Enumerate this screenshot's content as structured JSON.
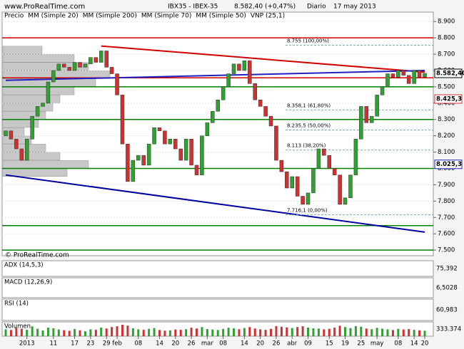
{
  "chart_data": {
    "type": "candlestick",
    "title": "IBX35 - IBEX-35",
    "last_price": "8.582,40 (+0,47%)",
    "period": "Diario",
    "date": "17 may 2013",
    "watermark": "www.ProRealTime.com",
    "footer_logo": "© ProRealTime.com",
    "legend": [
      {
        "name": "Precio",
        "color": "#555555"
      },
      {
        "name": "MM (Simple 20)",
        "color": "#c04040"
      },
      {
        "name": "MM (Simple 200)",
        "color": "#205020"
      },
      {
        "name": "MM (Simple 70)",
        "color": "#202090"
      },
      {
        "name": "MM (Simple 50)",
        "color": "#9090c0"
      },
      {
        "name": "VNP (25,1)",
        "color": "#a0a0a0"
      }
    ],
    "ylim": [
      7470,
      9010
    ],
    "yticks": [
      {
        "value": 8900,
        "label": "8.900"
      },
      {
        "value": 8800,
        "label": "8.800"
      },
      {
        "value": 8700,
        "label": "8.700"
      },
      {
        "value": 8600,
        "label": "8.600"
      },
      {
        "value": 8500,
        "label": "8.500"
      },
      {
        "value": 8400,
        "label": "8.400"
      },
      {
        "value": 8300,
        "label": "8.300"
      },
      {
        "value": 8200,
        "label": "8.200"
      },
      {
        "value": 8100,
        "label": "8.100"
      },
      {
        "value": 8000,
        "label": "8.000"
      },
      {
        "value": 7900,
        "label": "7.900"
      },
      {
        "value": 7800,
        "label": "7.800"
      },
      {
        "value": 7700,
        "label": "7.700"
      },
      {
        "value": 7600,
        "label": "7.600"
      },
      {
        "value": 7500,
        "label": "7.500"
      }
    ],
    "categories": [
      null,
      null,
      null,
      null,
      "2013",
      null,
      null,
      null,
      null,
      "11",
      null,
      null,
      null,
      "17",
      null,
      null,
      "23",
      null,
      null,
      "29",
      null,
      "feb",
      null,
      null,
      null,
      "08",
      null,
      null,
      null,
      "14",
      null,
      null,
      "20",
      null,
      null,
      "26",
      null,
      null,
      "mar",
      null,
      null,
      "08",
      null,
      null,
      null,
      "14",
      null,
      null,
      "20",
      null,
      null,
      "26",
      null,
      null,
      "abr",
      null,
      null,
      "09",
      null,
      null,
      null,
      "15",
      null,
      null,
      "19",
      null,
      null,
      "25",
      null,
      null,
      "may",
      null,
      null,
      null,
      "08",
      null,
      null,
      "14",
      null,
      "20"
    ],
    "open": [
      8200,
      8230,
      8180,
      8120,
      8050,
      8180,
      8320,
      8380,
      8400,
      8530,
      8600,
      8640,
      8620,
      8600,
      8650,
      8620,
      8640,
      8680,
      8650,
      8720,
      8620,
      8580,
      8450,
      8150,
      7920,
      8050,
      8080,
      8020,
      8150,
      8250,
      8230,
      8150,
      8180,
      8120,
      8050,
      8180,
      8020,
      7960,
      8200,
      8280,
      8350,
      8420,
      8500,
      8580,
      8640,
      8600,
      8660,
      8520,
      8420,
      8380,
      8320,
      8260,
      8050,
      7980,
      7880,
      7950,
      7830,
      7780,
      7850,
      8000,
      8120,
      8080,
      8000,
      7960,
      7780,
      7820,
      7960,
      8180,
      8380,
      8280,
      8320,
      8450,
      8500,
      8580,
      8560,
      8600,
      8570,
      8520,
      8600,
      8560
    ],
    "close": [
      8230,
      8180,
      8120,
      8050,
      8180,
      8320,
      8380,
      8400,
      8530,
      8600,
      8640,
      8620,
      8600,
      8650,
      8620,
      8640,
      8680,
      8650,
      8720,
      8620,
      8580,
      8450,
      8150,
      7920,
      8050,
      8080,
      8020,
      8150,
      8250,
      8230,
      8150,
      8180,
      8120,
      8050,
      8180,
      8020,
      7960,
      8200,
      8280,
      8350,
      8420,
      8500,
      8580,
      8640,
      8600,
      8660,
      8520,
      8420,
      8380,
      8320,
      8260,
      8050,
      7980,
      7880,
      7950,
      7830,
      7780,
      7850,
      8000,
      8120,
      8080,
      8000,
      7960,
      7780,
      7820,
      7960,
      8180,
      8380,
      8280,
      8320,
      8450,
      8500,
      8580,
      8560,
      8600,
      8570,
      8520,
      8600,
      8560,
      8582.4
    ],
    "up_color": "#30a030",
    "down_color": "#d03030",
    "levels": [
      {
        "value": 8800,
        "color": "#d00000"
      },
      {
        "value": 8555,
        "color": "#d00000"
      },
      {
        "value": 8500,
        "color": "#008000"
      },
      {
        "value": 8300,
        "color": "#008000"
      },
      {
        "value": 8000,
        "color": "#008000"
      },
      {
        "value": 7650,
        "color": "#008000"
      },
      {
        "value": 7500,
        "color": "#008000"
      }
    ],
    "trendlines": [
      {
        "from": [
          18,
          8750
        ],
        "to": [
          79,
          8590
        ],
        "color": "#d00000"
      },
      {
        "from": [
          0,
          7960
        ],
        "to": [
          79,
          7610
        ],
        "color": "#0000a0"
      },
      {
        "from": [
          0,
          8540
        ],
        "to": [
          79,
          8600
        ],
        "color": "#2020c0"
      }
    ],
    "fib_labels": [
      {
        "value": 8755,
        "label": "8.755 (100,00%)"
      },
      {
        "value": 8358.1,
        "label": "8.358,1 (61,80%)"
      },
      {
        "value": 8235.5,
        "label": "8.235,5 (50,00%)"
      },
      {
        "value": 8113,
        "label": "8.113 (38,20%)"
      },
      {
        "value": 7716.1,
        "label": "7.716,1 (0,00%)"
      }
    ],
    "price_labels": [
      {
        "value": 8582.4,
        "label": "8.582,40",
        "color": "#000000"
      },
      {
        "value": 8425.3,
        "label": "8.425,3",
        "color": "#d03030"
      },
      {
        "value": 8025.3,
        "label": "8.025,3",
        "color": "#2020c0"
      }
    ],
    "vnp_prices": [
      8725,
      8675,
      8625,
      8575,
      8525,
      8475,
      8425,
      8375,
      8325,
      8275,
      8225,
      8175,
      8125,
      8075,
      8025,
      7975
    ],
    "vnp_values": [
      55,
      100,
      120,
      150,
      130,
      100,
      80,
      70,
      60,
      50,
      30,
      40,
      60,
      80,
      120,
      90
    ],
    "panels": [
      {
        "name": "ADX (14,5,3)",
        "last": "75,392"
      },
      {
        "name": "MACD (12,26,9)",
        "last": "6,5028"
      },
      {
        "name": "RSI (14)",
        "last": "60,983"
      },
      {
        "name": "Volumen",
        "last": "333.374"
      }
    ],
    "volume": [
      420000,
      380000,
      510000,
      460000,
      390000,
      600000,
      450000,
      350000,
      520000,
      480000,
      410000,
      370000,
      330000,
      440000,
      360000,
      300000,
      420000,
      390000,
      530000,
      470000,
      560000,
      610000,
      700000,
      650000,
      480000,
      420000,
      390000,
      450000,
      500000,
      380000,
      340000,
      360000,
      410000,
      390000,
      430000,
      520000,
      470000,
      560000,
      440000,
      410000,
      380000,
      450000,
      520000,
      480000,
      430000,
      500000,
      560000,
      470000,
      420000,
      390000,
      450000,
      620000,
      580000,
      540000,
      500000,
      560000,
      610000,
      530000,
      480000,
      470000,
      420000,
      450000,
      520000,
      640000,
      560000,
      500000,
      620000,
      580000,
      470000,
      430000,
      510000,
      460000,
      420000,
      380000,
      450000,
      410000,
      440000,
      390000,
      360000,
      333374
    ]
  }
}
